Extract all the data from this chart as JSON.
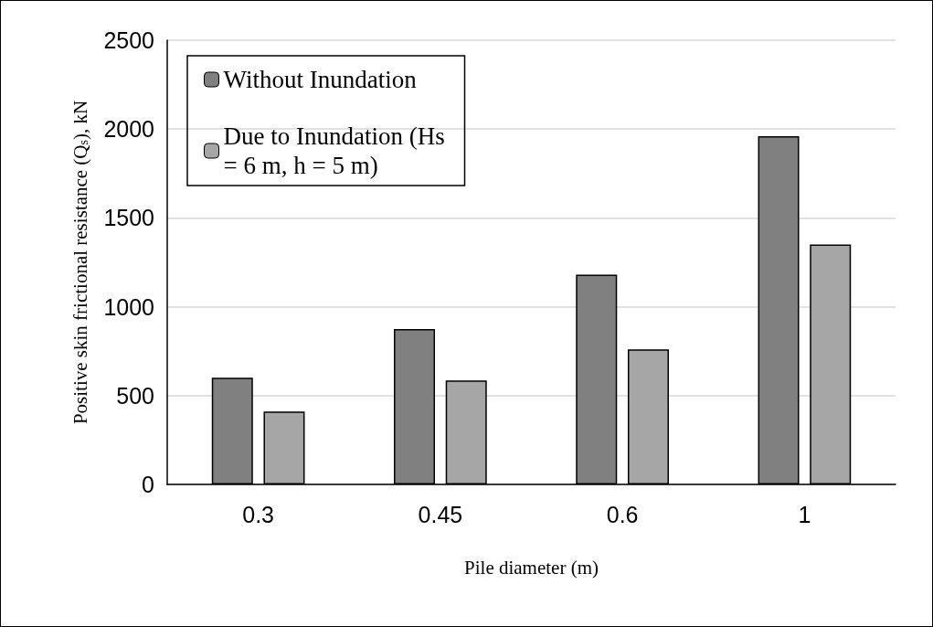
{
  "chart_data": {
    "type": "bar",
    "xlabel": "Pile diameter (m)",
    "ylabel": "Positive skin frictional resistance (Q$_{s}$), kN",
    "categories": [
      "0.3",
      "0.45",
      "0.6",
      "1"
    ],
    "series": [
      {
        "name": "Without Inundation",
        "color": "#808080",
        "values": [
          600,
          875,
          1180,
          1960
        ]
      },
      {
        "name": "Due to Inundation (Hs = 6 m, h = 5 m)",
        "color": "#a6a6a6",
        "values": [
          410,
          585,
          760,
          1350
        ]
      }
    ],
    "ylim": [
      0,
      2500
    ],
    "yticks": [
      0,
      500,
      1000,
      1500,
      2000,
      2500
    ],
    "grid": "y",
    "legend": "top left"
  }
}
